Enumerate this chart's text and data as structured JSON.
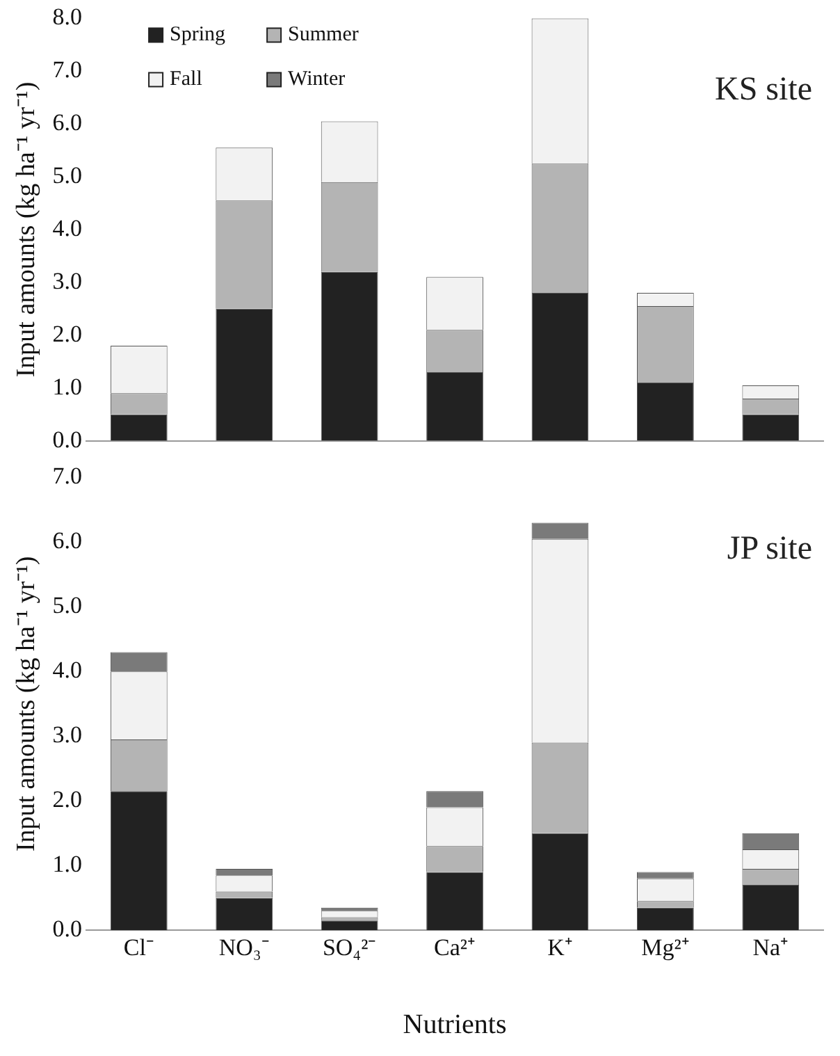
{
  "chart_data": [
    {
      "type": "bar",
      "stacked": true,
      "ylabel": "Input amounts (kg ha⁻¹ yr⁻¹)",
      "annotations": [
        "KS site"
      ],
      "categories": [
        null,
        null,
        null,
        null,
        null,
        null,
        null
      ],
      "series": [
        {
          "name": "Spring",
          "color": "#222222",
          "values": [
            0.5,
            2.5,
            3.2,
            1.3,
            2.8,
            1.1,
            0.5
          ]
        },
        {
          "name": "Summer",
          "color": "#b4b4b4",
          "values": [
            0.4,
            2.05,
            1.7,
            0.8,
            2.45,
            1.45,
            0.3
          ]
        },
        {
          "name": "Fall",
          "color": "#f2f2f2",
          "values": [
            0.9,
            1.0,
            1.15,
            1.0,
            2.75,
            0.25,
            0.25
          ]
        },
        {
          "name": "Winter",
          "color": "#7a7a7a",
          "values": [
            0,
            0,
            0,
            0,
            0,
            0,
            0
          ]
        }
      ],
      "ylim": [
        0,
        8
      ],
      "yticks": [
        {
          "value": 0,
          "label": "0.0"
        },
        {
          "value": 1,
          "label": "1.0"
        },
        {
          "value": 2,
          "label": "2.0"
        },
        {
          "value": 3,
          "label": "3.0"
        },
        {
          "value": 4,
          "label": "4.0"
        },
        {
          "value": 5,
          "label": "5.0"
        },
        {
          "value": 6,
          "label": "6.0"
        },
        {
          "value": 7,
          "label": "7.0"
        },
        {
          "value": 8,
          "label": "8.0"
        }
      ],
      "tick_labels": "y",
      "grid": false,
      "legend": "top left"
    },
    {
      "type": "bar",
      "stacked": true,
      "xlabel": "Nutrients",
      "ylabel": "Input amounts (kg ha⁻¹ yr⁻¹)",
      "annotations": [
        "JP site"
      ],
      "categories": [
        "Cl⁻",
        "NO₃⁻",
        "SO₄²⁻",
        "Ca²⁺",
        "K⁺",
        "Mg²⁺",
        "Na⁺"
      ],
      "series": [
        {
          "color": "#222222",
          "values": [
            2.15,
            0.5,
            0.15,
            0.9,
            1.5,
            0.35,
            0.7
          ]
        },
        {
          "color": "#b4b4b4",
          "values": [
            0.8,
            0.1,
            0.05,
            0.4,
            1.4,
            0.1,
            0.25
          ]
        },
        {
          "color": "#f2f2f2",
          "values": [
            1.05,
            0.25,
            0.1,
            0.6,
            3.15,
            0.35,
            0.3
          ]
        },
        {
          "color": "#7a7a7a",
          "values": [
            0.3,
            0.1,
            0.05,
            0.25,
            0.25,
            0.1,
            0.25
          ]
        }
      ],
      "ylim": [
        0,
        7
      ],
      "yticks": [
        {
          "value": 0,
          "label": "0.0"
        },
        {
          "value": 1,
          "label": "1.0"
        },
        {
          "value": 2,
          "label": "2.0"
        },
        {
          "value": 3,
          "label": "3.0"
        },
        {
          "value": 4,
          "label": "4.0"
        },
        {
          "value": 5,
          "label": "5.0"
        },
        {
          "value": 6,
          "label": "6.0"
        },
        {
          "value": 7,
          "label": "7.0"
        }
      ],
      "grid": false,
      "legend": false
    }
  ]
}
